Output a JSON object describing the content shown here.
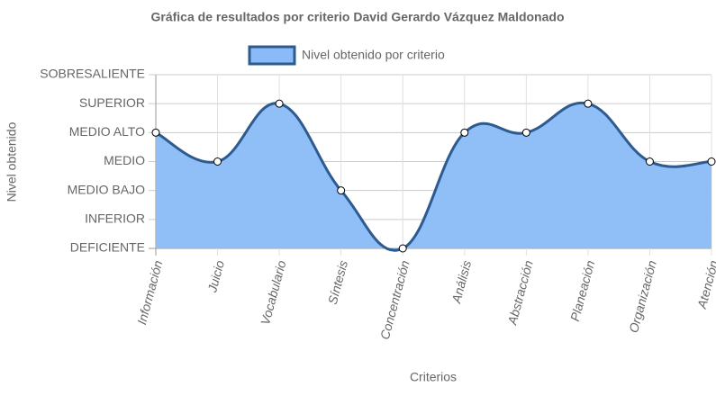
{
  "chart_data": {
    "type": "area",
    "title": "Gráfica de resultados por criterio David Gerardo Vázquez Maldonado",
    "x_label": "Criterios",
    "y_label": "Nivel obtenido",
    "categories": [
      "Información",
      "Juicio",
      "Vocabulario",
      "Síntesis",
      "Concentración",
      "Análisis",
      "Abstracción",
      "Planeación",
      "Organización",
      "Atención"
    ],
    "series": [
      {
        "name": "Nivel obtenido por criterio",
        "color": "#2e5b8f",
        "fill": "#8abaf7",
        "values": [
          4,
          3,
          5,
          2,
          0,
          4,
          4,
          5,
          3,
          3
        ]
      }
    ],
    "ylim": [
      0,
      6
    ],
    "yticks": [
      {
        "value": 0,
        "label": "DEFICIENTE"
      },
      {
        "value": 1,
        "label": "INFERIOR"
      },
      {
        "value": 2,
        "label": "MEDIO BAJO"
      },
      {
        "value": 3,
        "label": "MEDIO"
      },
      {
        "value": 4,
        "label": "MEDIO ALTO"
      },
      {
        "value": 5,
        "label": "SUPERIOR"
      },
      {
        "value": 6,
        "label": "SOBRESALIENTE"
      }
    ],
    "grid": true,
    "legend": "top"
  }
}
